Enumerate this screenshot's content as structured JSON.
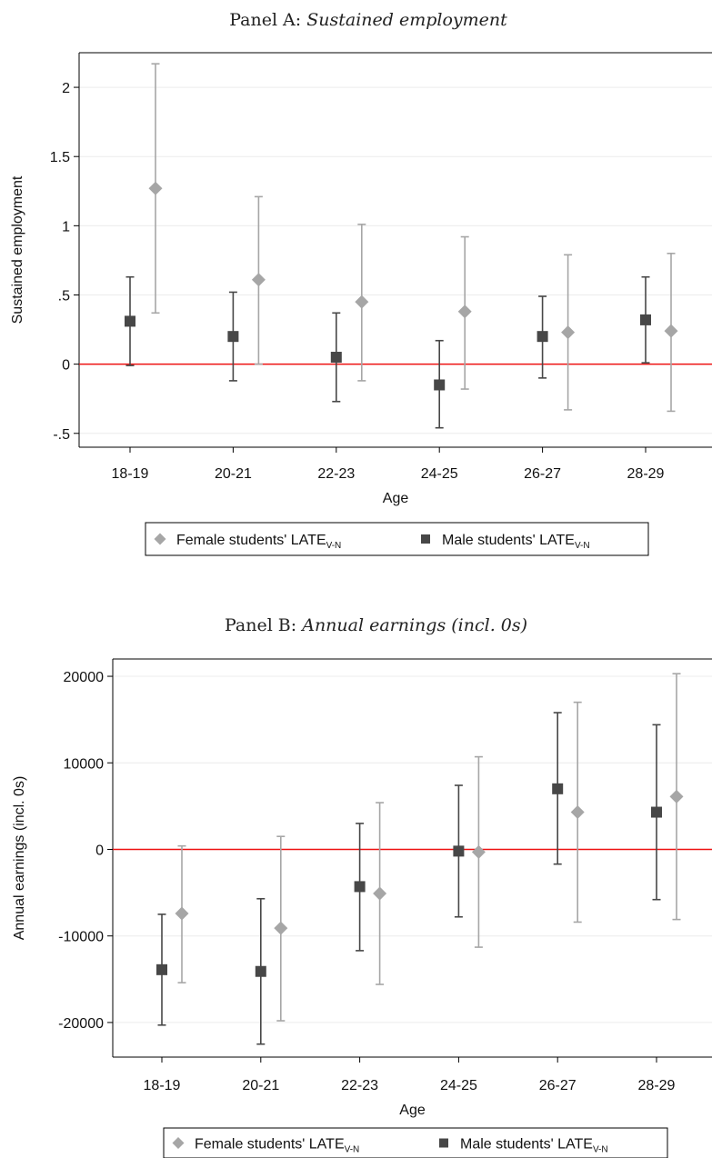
{
  "chart_data": [
    {
      "type": "scatter",
      "title_prefix": "Panel A: ",
      "title_italic": "Sustained employment",
      "xlabel": "Age",
      "ylabel": "Sustained employment",
      "categories": [
        "18-19",
        "20-21",
        "22-23",
        "24-25",
        "26-27",
        "28-29"
      ],
      "ylim": [
        -0.6,
        2.25
      ],
      "yticks": [
        -0.5,
        0,
        0.5,
        1,
        1.5,
        2
      ],
      "ytick_labels": [
        "-.5",
        "0",
        ".5",
        "1",
        "1.5",
        "2"
      ],
      "reference_line": 0,
      "series_order": [
        "male",
        "female"
      ],
      "series": [
        {
          "key": "male",
          "name": "Male students' LATE",
          "name_sub": "V-N",
          "marker": "square",
          "color": "#474747",
          "values": [
            0.31,
            0.2,
            0.05,
            -0.15,
            0.2,
            0.32
          ],
          "ci_low": [
            -0.01,
            -0.12,
            -0.27,
            -0.46,
            -0.1,
            0.01
          ],
          "ci_high": [
            0.63,
            0.52,
            0.37,
            0.17,
            0.49,
            0.63
          ]
        },
        {
          "key": "female",
          "name": "Female students' LATE",
          "name_sub": "V-N",
          "marker": "diamond",
          "color": "#a6a6a6",
          "values": [
            1.27,
            0.61,
            0.45,
            0.38,
            0.23,
            0.24
          ],
          "ci_low": [
            0.37,
            0.0,
            -0.12,
            -0.18,
            -0.33,
            -0.34
          ],
          "ci_high": [
            2.17,
            1.21,
            1.01,
            0.92,
            0.79,
            0.8
          ]
        }
      ],
      "legend_order": [
        "female",
        "male"
      ],
      "grid": true,
      "legend_position": "bottom"
    },
    {
      "type": "scatter",
      "title_prefix": "Panel B: ",
      "title_italic": "Annual earnings (incl. 0s)",
      "xlabel": "Age",
      "ylabel": "Annual earnings (incl. 0s)",
      "categories": [
        "18-19",
        "20-21",
        "22-23",
        "24-25",
        "26-27",
        "28-29"
      ],
      "ylim": [
        -24000,
        22000
      ],
      "yticks": [
        -20000,
        -10000,
        0,
        10000,
        20000
      ],
      "ytick_labels": [
        "-20000",
        "-10000",
        "0",
        "10000",
        "20000"
      ],
      "reference_line": 0,
      "series_order": [
        "male",
        "female"
      ],
      "series": [
        {
          "key": "male",
          "name": "Male students' LATE",
          "name_sub": "V-N",
          "marker": "square",
          "color": "#474747",
          "values": [
            -13900,
            -14100,
            -4300,
            -200,
            7000,
            4300
          ],
          "ci_low": [
            -20300,
            -22500,
            -11700,
            -7800,
            -1700,
            -5800
          ],
          "ci_high": [
            -7500,
            -5700,
            3000,
            7400,
            15800,
            14400
          ]
        },
        {
          "key": "female",
          "name": "Female students' LATE",
          "name_sub": "V-N",
          "marker": "diamond",
          "color": "#a6a6a6",
          "values": [
            -7400,
            -9100,
            -5100,
            -300,
            4300,
            6100
          ],
          "ci_low": [
            -15400,
            -19800,
            -15600,
            -11300,
            -8400,
            -8100
          ],
          "ci_high": [
            400,
            1500,
            5400,
            10700,
            17000,
            20300
          ]
        }
      ],
      "legend_order": [
        "female",
        "male"
      ],
      "grid": true,
      "legend_position": "bottom"
    }
  ]
}
